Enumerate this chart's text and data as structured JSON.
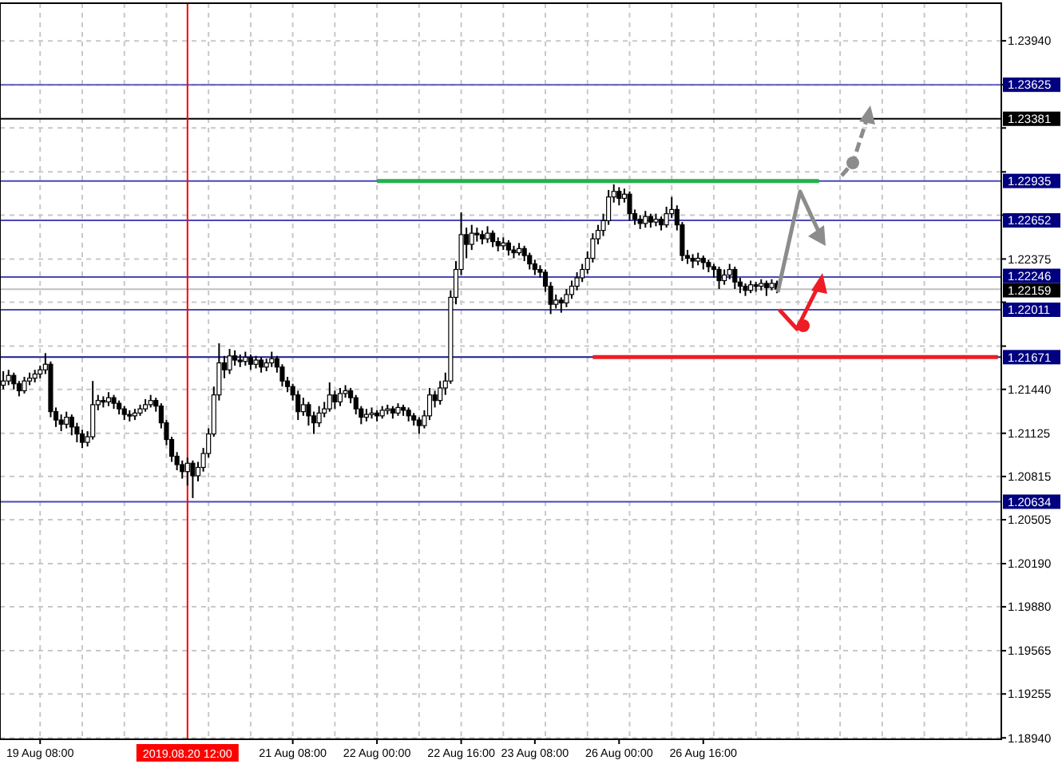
{
  "chart_data": {
    "type": "candlestick",
    "color": "#000000",
    "grid": true,
    "categories": [
      null,
      null,
      null,
      null,
      null,
      null,
      null,
      "19 Aug 08:00",
      null,
      null,
      null,
      null,
      null,
      null,
      null,
      null,
      null,
      null,
      null,
      null,
      null,
      null,
      null,
      null,
      null,
      null,
      null,
      null,
      null,
      null,
      null,
      null,
      null,
      null,
      null,
      "2019.08.20 12:00",
      null,
      null,
      null,
      null,
      null,
      null,
      null,
      null,
      null,
      null,
      null,
      null,
      null,
      null,
      null,
      null,
      null,
      null,
      null,
      "21 Aug 08:00",
      null,
      null,
      null,
      null,
      null,
      null,
      null,
      null,
      null,
      null,
      null,
      null,
      null,
      null,
      null,
      "22 Aug 00:00",
      null,
      null,
      null,
      null,
      null,
      null,
      null,
      null,
      null,
      null,
      null,
      null,
      null,
      null,
      null,
      "22 Aug 16:00",
      null,
      null,
      null,
      null,
      null,
      null,
      null,
      null,
      null,
      null,
      null,
      null,
      null,
      "23 Aug 08:00",
      null,
      null,
      null,
      null,
      null,
      null,
      null,
      null,
      null,
      null,
      null,
      null,
      null,
      null,
      null,
      "26 Aug 00:00",
      null,
      null,
      null,
      null,
      null,
      null,
      null,
      null,
      null,
      null,
      null,
      null,
      null,
      null,
      null,
      "26 Aug 16:00",
      null,
      null,
      null,
      null,
      null,
      null,
      null,
      null,
      null,
      null,
      null,
      null,
      null,
      null,
      null,
      null,
      null,
      null,
      null,
      null,
      null,
      null,
      null,
      null,
      null,
      null,
      null,
      null,
      null,
      null,
      null,
      null,
      null,
      null,
      null,
      null,
      null,
      null,
      null,
      null,
      null,
      null,
      null,
      null,
      null,
      null,
      null,
      null,
      null,
      null,
      null,
      null,
      null,
      null,
      null,
      null
    ],
    "ohlc": [
      [
        1.2147,
        1.2157,
        1.2144,
        1.215
      ],
      [
        1.215,
        1.2158,
        1.2147,
        1.2154
      ],
      [
        1.2154,
        1.2156,
        1.2144,
        1.2148
      ],
      [
        1.2148,
        1.215,
        1.2139,
        1.2143
      ],
      [
        1.2143,
        1.2153,
        1.2141,
        1.215
      ],
      [
        1.215,
        1.2156,
        1.2147,
        1.2152
      ],
      [
        1.2152,
        1.2158,
        1.2149,
        1.2155
      ],
      [
        1.2155,
        1.2161,
        1.2152,
        1.2158
      ],
      [
        1.2158,
        1.217,
        1.2155,
        1.2162
      ],
      [
        1.2162,
        1.2164,
        1.2124,
        1.2128
      ],
      [
        1.2128,
        1.2131,
        1.2117,
        1.2122
      ],
      [
        1.2122,
        1.2126,
        1.2114,
        1.2119
      ],
      [
        1.2119,
        1.2128,
        1.2116,
        1.2124
      ],
      [
        1.2124,
        1.2126,
        1.2111,
        1.2117
      ],
      [
        1.2117,
        1.212,
        1.2106,
        1.2112
      ],
      [
        1.2112,
        1.2115,
        1.2102,
        1.2106
      ],
      [
        1.2106,
        1.2114,
        1.2103,
        1.211
      ],
      [
        1.211,
        1.215,
        1.2108,
        1.2133
      ],
      [
        1.2133,
        1.214,
        1.2129,
        1.2136
      ],
      [
        1.2136,
        1.2139,
        1.2131,
        1.2135
      ],
      [
        1.2135,
        1.2142,
        1.2132,
        1.2138
      ],
      [
        1.2138,
        1.214,
        1.213,
        1.2134
      ],
      [
        1.2134,
        1.2136,
        1.2126,
        1.213
      ],
      [
        1.213,
        1.2132,
        1.2122,
        1.2126
      ],
      [
        1.2126,
        1.2129,
        1.2121,
        1.2125
      ],
      [
        1.2125,
        1.213,
        1.2122,
        1.2127
      ],
      [
        1.2127,
        1.2133,
        1.2125,
        1.213
      ],
      [
        1.213,
        1.2137,
        1.2128,
        1.2133
      ],
      [
        1.2133,
        1.214,
        1.2131,
        1.2136
      ],
      [
        1.2136,
        1.2138,
        1.2128,
        1.2132
      ],
      [
        1.2132,
        1.2134,
        1.2116,
        1.212
      ],
      [
        1.212,
        1.2122,
        1.2104,
        1.2108
      ],
      [
        1.2108,
        1.211,
        1.2092,
        1.2096
      ],
      [
        1.2096,
        1.2099,
        1.2086,
        1.209
      ],
      [
        1.209,
        1.2093,
        1.208,
        1.2085
      ],
      [
        1.2085,
        1.2095,
        1.2075,
        1.2091
      ],
      [
        1.2091,
        1.2093,
        1.2066,
        1.2082
      ],
      [
        1.2082,
        1.2092,
        1.2078,
        1.2088
      ],
      [
        1.2088,
        1.2102,
        1.2085,
        1.2098
      ],
      [
        1.2098,
        1.2116,
        1.2095,
        1.2112
      ],
      [
        1.2112,
        1.2146,
        1.211,
        1.214
      ],
      [
        1.214,
        1.2177,
        1.2136,
        1.2163
      ],
      [
        1.2163,
        1.2168,
        1.2152,
        1.2158
      ],
      [
        1.2158,
        1.2173,
        1.2155,
        1.2168
      ],
      [
        1.2168,
        1.2172,
        1.2161,
        1.2165
      ],
      [
        1.2165,
        1.2169,
        1.216,
        1.2164
      ],
      [
        1.2164,
        1.2171,
        1.2161,
        1.2167
      ],
      [
        1.2167,
        1.2169,
        1.2158,
        1.2162
      ],
      [
        1.2162,
        1.2168,
        1.2159,
        1.2165
      ],
      [
        1.2165,
        1.2167,
        1.2156,
        1.216
      ],
      [
        1.216,
        1.2166,
        1.2157,
        1.2163
      ],
      [
        1.2163,
        1.2171,
        1.216,
        1.2166
      ],
      [
        1.2166,
        1.2168,
        1.2156,
        1.216
      ],
      [
        1.216,
        1.2162,
        1.2146,
        1.215
      ],
      [
        1.215,
        1.2153,
        1.2142,
        1.2146
      ],
      [
        1.2146,
        1.2148,
        1.2136,
        1.214
      ],
      [
        1.214,
        1.2143,
        1.2122,
        1.2128
      ],
      [
        1.2128,
        1.2138,
        1.2125,
        1.2133
      ],
      [
        1.2133,
        1.2135,
        1.2118,
        1.2125
      ],
      [
        1.2125,
        1.2128,
        1.2112,
        1.212
      ],
      [
        1.212,
        1.2132,
        1.2117,
        1.2127
      ],
      [
        1.2127,
        1.2135,
        1.2124,
        1.213
      ],
      [
        1.213,
        1.2149,
        1.2128,
        1.214
      ],
      [
        1.214,
        1.2143,
        1.213,
        1.2135
      ],
      [
        1.2135,
        1.2145,
        1.2132,
        1.2141
      ],
      [
        1.2141,
        1.2147,
        1.2138,
        1.2143
      ],
      [
        1.2143,
        1.2145,
        1.2134,
        1.2138
      ],
      [
        1.2138,
        1.214,
        1.2126,
        1.213
      ],
      [
        1.213,
        1.2132,
        1.2119,
        1.2124
      ],
      [
        1.2124,
        1.213,
        1.2121,
        1.2126
      ],
      [
        1.2126,
        1.2131,
        1.2123,
        1.2127
      ],
      [
        1.2127,
        1.2129,
        1.2121,
        1.2125
      ],
      [
        1.2125,
        1.2132,
        1.2123,
        1.2129
      ],
      [
        1.2129,
        1.2133,
        1.2126,
        1.213
      ],
      [
        1.213,
        1.2132,
        1.2123,
        1.2127
      ],
      [
        1.2127,
        1.2134,
        1.2125,
        1.2131
      ],
      [
        1.2131,
        1.2133,
        1.2125,
        1.2129
      ],
      [
        1.2129,
        1.2131,
        1.2121,
        1.2125
      ],
      [
        1.2125,
        1.2127,
        1.2118,
        1.2122
      ],
      [
        1.2122,
        1.2124,
        1.2112,
        1.2118
      ],
      [
        1.2118,
        1.2129,
        1.2116,
        1.2125
      ],
      [
        1.2125,
        1.2145,
        1.2122,
        1.214
      ],
      [
        1.214,
        1.2143,
        1.2131,
        1.2136
      ],
      [
        1.2136,
        1.215,
        1.2133,
        1.2145
      ],
      [
        1.2145,
        1.2156,
        1.214,
        1.215
      ],
      [
        1.215,
        1.2215,
        1.2148,
        1.221
      ],
      [
        1.221,
        1.2236,
        1.2205,
        1.223
      ],
      [
        1.223,
        1.2271,
        1.2226,
        1.2255
      ],
      [
        1.2255,
        1.226,
        1.2238,
        1.2248
      ],
      [
        1.2248,
        1.2262,
        1.2244,
        1.2256
      ],
      [
        1.2256,
        1.226,
        1.225,
        1.2255
      ],
      [
        1.2255,
        1.2258,
        1.2248,
        1.2252
      ],
      [
        1.2252,
        1.2261,
        1.2249,
        1.2256
      ],
      [
        1.2256,
        1.2258,
        1.2246,
        1.225
      ],
      [
        1.225,
        1.2253,
        1.2243,
        1.2247
      ],
      [
        1.2247,
        1.2253,
        1.2244,
        1.2249
      ],
      [
        1.2249,
        1.2251,
        1.224,
        1.2244
      ],
      [
        1.2244,
        1.2247,
        1.2238,
        1.2242
      ],
      [
        1.2242,
        1.2249,
        1.224,
        1.2245
      ],
      [
        1.2245,
        1.2247,
        1.2236,
        1.224
      ],
      [
        1.224,
        1.2242,
        1.223,
        1.2234
      ],
      [
        1.2234,
        1.2237,
        1.2226,
        1.223
      ],
      [
        1.223,
        1.2233,
        1.2224,
        1.2228
      ],
      [
        1.2228,
        1.223,
        1.2214,
        1.2218
      ],
      [
        1.2218,
        1.2221,
        1.2198,
        1.2205
      ],
      [
        1.2205,
        1.2212,
        1.2202,
        1.2208
      ],
      [
        1.2208,
        1.221,
        1.2199,
        1.2206
      ],
      [
        1.2206,
        1.2216,
        1.2203,
        1.2212
      ],
      [
        1.2212,
        1.2222,
        1.2209,
        1.2218
      ],
      [
        1.2218,
        1.2228,
        1.2215,
        1.2224
      ],
      [
        1.2224,
        1.2234,
        1.2221,
        1.223
      ],
      [
        1.223,
        1.2243,
        1.2227,
        1.2238
      ],
      [
        1.2238,
        1.2256,
        1.2235,
        1.2252
      ],
      [
        1.2252,
        1.2262,
        1.2248,
        1.2258
      ],
      [
        1.2258,
        1.227,
        1.2254,
        1.2265
      ],
      [
        1.2265,
        1.2287,
        1.2262,
        1.2282
      ],
      [
        1.2282,
        1.2291,
        1.2278,
        1.2286
      ],
      [
        1.2286,
        1.2289,
        1.2276,
        1.2281
      ],
      [
        1.2281,
        1.2288,
        1.2278,
        1.2284
      ],
      [
        1.2284,
        1.2286,
        1.2265,
        1.227
      ],
      [
        1.227,
        1.2273,
        1.2262,
        1.2266
      ],
      [
        1.2266,
        1.2269,
        1.2259,
        1.2263
      ],
      [
        1.2263,
        1.2272,
        1.226,
        1.2268
      ],
      [
        1.2268,
        1.227,
        1.226,
        1.2264
      ],
      [
        1.2264,
        1.227,
        1.2261,
        1.2266
      ],
      [
        1.2266,
        1.2268,
        1.2258,
        1.2262
      ],
      [
        1.2262,
        1.2275,
        1.226,
        1.227
      ],
      [
        1.227,
        1.2282,
        1.2267,
        1.2273
      ],
      [
        1.2273,
        1.2276,
        1.2258,
        1.2262
      ],
      [
        1.2262,
        1.2264,
        1.2236,
        1.224
      ],
      [
        1.224,
        1.2244,
        1.2234,
        1.2238
      ],
      [
        1.2238,
        1.2241,
        1.2231,
        1.2236
      ],
      [
        1.2236,
        1.2242,
        1.2233,
        1.2238
      ],
      [
        1.2238,
        1.224,
        1.223,
        1.2235
      ],
      [
        1.2235,
        1.2237,
        1.2228,
        1.2232
      ],
      [
        1.2232,
        1.2234,
        1.2224,
        1.223
      ],
      [
        1.223,
        1.2232,
        1.2216,
        1.2222
      ],
      [
        1.2222,
        1.223,
        1.2219,
        1.2226
      ],
      [
        1.2226,
        1.2234,
        1.2223,
        1.223
      ],
      [
        1.223,
        1.2232,
        1.2216,
        1.2221
      ],
      [
        1.2221,
        1.2224,
        1.2213,
        1.2218
      ],
      [
        1.2218,
        1.222,
        1.2211,
        1.2215
      ],
      [
        1.2215,
        1.2222,
        1.2213,
        1.2219
      ],
      [
        1.2219,
        1.2221,
        1.2214,
        1.2218
      ],
      [
        1.2218,
        1.2223,
        1.2215,
        1.222
      ],
      [
        1.222,
        1.2222,
        1.2211,
        1.2217
      ],
      [
        1.2217,
        1.2223,
        1.2215,
        1.222
      ],
      [
        1.222,
        1.2222,
        1.2213,
        1.22159
      ],
      null,
      null,
      null,
      null,
      null,
      null,
      null,
      null,
      null,
      null,
      null,
      null,
      null,
      null,
      null,
      null,
      null,
      null,
      null,
      null,
      null,
      null,
      null,
      null,
      null,
      null,
      null,
      null,
      null,
      null,
      null,
      null,
      null,
      null,
      null,
      null,
      null,
      null,
      null,
      null,
      null,
      null
    ],
    "series": [
      {
        "type": "line",
        "color": "#22b14c",
        "values": [
          null,
          null,
          null,
          null,
          null,
          null,
          null,
          null,
          null,
          null,
          null,
          null,
          null,
          null,
          null,
          null,
          null,
          null,
          null,
          null,
          null,
          null,
          null,
          null,
          null,
          null,
          null,
          null,
          null,
          null,
          null,
          null,
          null,
          null,
          null,
          null,
          null,
          null,
          null,
          null,
          null,
          null,
          null,
          null,
          null,
          null,
          null,
          null,
          null,
          null,
          null,
          null,
          null,
          null,
          null,
          null,
          null,
          null,
          null,
          null,
          null,
          null,
          null,
          null,
          null,
          null,
          null,
          null,
          null,
          null,
          null,
          1.22935,
          1.22935,
          1.22935,
          1.22935,
          1.22935,
          1.22935,
          1.22935,
          1.22935,
          1.22935,
          1.22935,
          1.22935,
          1.22935,
          1.22935,
          1.22935,
          1.22935,
          1.22935,
          1.22935,
          1.22935,
          1.22935,
          1.22935,
          1.22935,
          1.22935,
          1.22935,
          1.22935,
          1.22935,
          1.22935,
          1.22935,
          1.22935,
          1.22935,
          1.22935,
          1.22935,
          1.22935,
          1.22935,
          1.22935,
          1.22935,
          1.22935,
          1.22935,
          1.22935,
          1.22935,
          1.22935,
          1.22935,
          1.22935,
          1.22935,
          1.22935,
          1.22935,
          1.22935,
          1.22935,
          1.22935,
          1.22935,
          1.22935,
          1.22935,
          1.22935,
          1.22935,
          1.22935,
          1.22935,
          1.22935,
          1.22935,
          1.22935,
          1.22935,
          1.22935,
          1.22935,
          1.22935,
          1.22935,
          1.22935,
          1.22935,
          1.22935,
          1.22935,
          1.22935,
          1.22935,
          1.22935,
          1.22935,
          1.22935,
          1.22935,
          1.22935,
          1.22935,
          1.22935,
          1.22935,
          1.22935,
          1.22935,
          1.22935,
          1.22935,
          1.22935,
          1.22935,
          1.22935,
          1.22935,
          null,
          null,
          null,
          null,
          null,
          null,
          null,
          null,
          null,
          null,
          null,
          null,
          null,
          null,
          null,
          null,
          null,
          null,
          null,
          null,
          null,
          null,
          null,
          null,
          null,
          null,
          null,
          null,
          null,
          null,
          null,
          null,
          null,
          null
        ]
      },
      {
        "type": "line",
        "color": "#ee1c24",
        "values": [
          null,
          null,
          null,
          null,
          null,
          null,
          null,
          null,
          null,
          null,
          null,
          null,
          null,
          null,
          null,
          null,
          null,
          null,
          null,
          null,
          null,
          null,
          null,
          null,
          null,
          null,
          null,
          null,
          null,
          null,
          null,
          null,
          null,
          null,
          null,
          null,
          null,
          null,
          null,
          null,
          null,
          null,
          null,
          null,
          null,
          null,
          null,
          null,
          null,
          null,
          null,
          null,
          null,
          null,
          null,
          null,
          null,
          null,
          null,
          null,
          null,
          null,
          null,
          null,
          null,
          null,
          null,
          null,
          null,
          null,
          null,
          null,
          null,
          null,
          null,
          null,
          null,
          null,
          null,
          null,
          null,
          null,
          null,
          null,
          null,
          null,
          null,
          null,
          null,
          null,
          null,
          null,
          null,
          null,
          null,
          null,
          null,
          null,
          null,
          null,
          null,
          null,
          null,
          null,
          null,
          null,
          null,
          null,
          null,
          null,
          null,
          null,
          1.21671,
          1.21671,
          1.21671,
          1.21671,
          1.21671,
          1.21671,
          1.21671,
          1.21671,
          1.21671,
          1.21671,
          1.21671,
          1.21671,
          1.21671,
          1.21671,
          1.21671,
          1.21671,
          1.21671,
          1.21671,
          1.21671,
          1.21671,
          1.21671,
          1.21671,
          1.21671,
          1.21671,
          1.21671,
          1.21671,
          1.21671,
          1.21671,
          1.21671,
          1.21671,
          1.21671,
          1.21671,
          1.21671,
          1.21671,
          1.21671,
          1.21671,
          1.21671,
          1.21671,
          1.21671,
          1.21671,
          1.21671,
          1.21671,
          1.21671,
          1.21671,
          1.21671,
          1.21671,
          1.21671,
          1.21671,
          1.21671,
          1.21671,
          1.21671,
          1.21671,
          1.21671,
          1.21671,
          1.21671,
          1.21671,
          1.21671,
          1.21671,
          1.21671,
          1.21671,
          1.21671,
          1.21671,
          1.21671,
          1.21671,
          1.21671,
          1.21671,
          1.21671,
          1.21671,
          1.21671,
          1.21671,
          1.21671,
          1.21671,
          1.21671,
          1.21671,
          1.21671,
          1.21671,
          1.21671,
          1.21671
        ]
      }
    ],
    "ylim": [
      1.1893,
      1.2421
    ],
    "yticks": [
      {
        "value": 1.1894,
        "label": "1.18940"
      },
      {
        "value": 1.19255,
        "label": "1.19255"
      },
      {
        "value": 1.19565,
        "label": "1.19565"
      },
      {
        "value": 1.1988,
        "label": "1.19880"
      },
      {
        "value": 1.2019,
        "label": "1.20190"
      },
      {
        "value": 1.20505,
        "label": "1.20505"
      },
      {
        "value": 1.20815,
        "label": "1.20815"
      },
      {
        "value": 1.21125,
        "label": "1.21125"
      },
      {
        "value": 1.2144,
        "label": "1.21440"
      },
      {
        "value": 1.2175,
        "label": null
      },
      {
        "value": 1.22065,
        "label": null
      },
      {
        "value": 1.22375,
        "label": "1.22375"
      },
      {
        "value": 1.2269,
        "label": null
      },
      {
        "value": 1.23,
        "label": null
      },
      {
        "value": 1.23315,
        "label": null
      },
      {
        "value": 1.23625,
        "label": null
      },
      {
        "value": 1.2394,
        "label": "1.23940"
      }
    ],
    "ref_lines": [
      {
        "axis": "y",
        "value": 1.23625,
        "label": "1.23625",
        "color": "#5c5cc0"
      },
      {
        "axis": "y",
        "value": 1.23381,
        "label": "1.23381",
        "color": "#000000"
      },
      {
        "axis": "y",
        "value": 1.22935,
        "label": "1.22935",
        "color": "#4848b8"
      },
      {
        "axis": "y",
        "value": 1.22652,
        "label": "1.22652",
        "color": "#4848b8"
      },
      {
        "axis": "y",
        "value": 1.22246,
        "label": "1.22246",
        "color": "#4848b8"
      },
      {
        "axis": "y",
        "value": 1.22159,
        "label": "1.22159",
        "color": "#c0c0c0"
      },
      {
        "axis": "y",
        "value": 1.22011,
        "label": "1.22011",
        "color": "#4848b8"
      },
      {
        "axis": "y",
        "value": 1.21671,
        "label": "1.21671",
        "color": "#1a1a90"
      },
      {
        "axis": "y",
        "value": 1.20634,
        "label": "1.20634",
        "color": "#4848b8"
      },
      {
        "axis": "x",
        "value": "2019.08.20 12:00",
        "color": "#ff0000"
      }
    ]
  }
}
